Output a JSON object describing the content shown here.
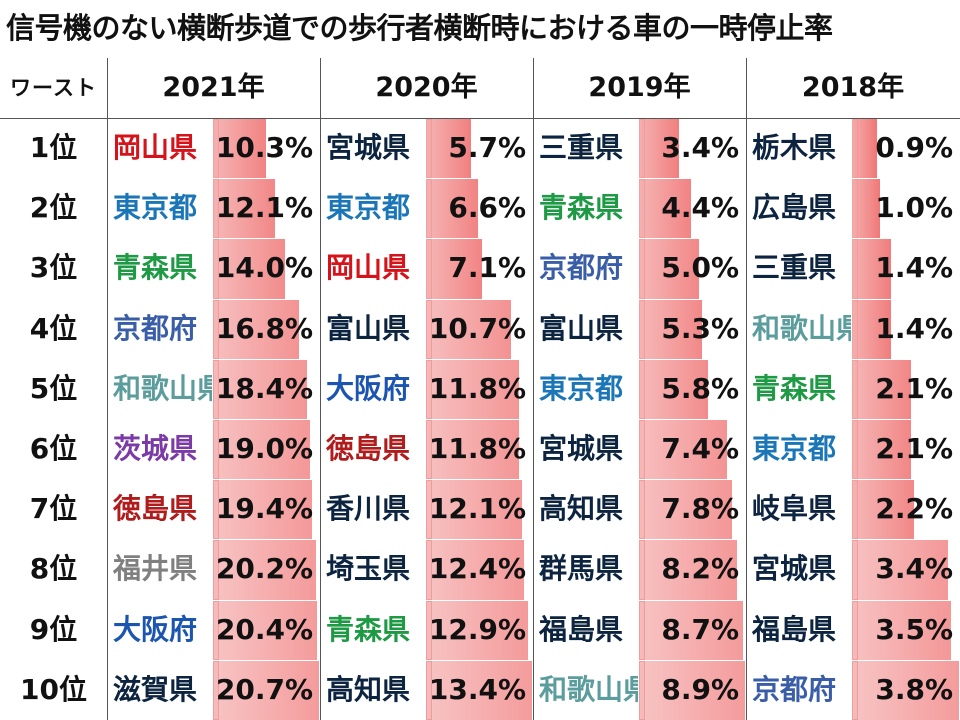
{
  "title": "信号機のない横断歩道での歩行者横断時における車の一時停止率",
  "header": {
    "worst_label": "ワースト",
    "years": [
      "2021年",
      "2020年",
      "2019年",
      "2018年"
    ]
  },
  "colors": {
    "okayama": "#d4141a",
    "tokyo": "#1b76b8",
    "aomori": "#1e9a45",
    "kyoto": "#3a5da8",
    "wakayama": "#5b9c9c",
    "ibaraki": "#7b3aa5",
    "tokushima": "#b01c1c",
    "fukui": "#808080",
    "osaka": "#1b55b0",
    "default": "#0d2440",
    "bar": "#ef6b6b"
  },
  "ranks": [
    "1位",
    "2位",
    "3位",
    "4位",
    "5位",
    "6位",
    "7位",
    "8位",
    "9位",
    "10位"
  ],
  "columns": [
    {
      "year": "2021年",
      "rows": [
        {
          "pref": "岡山県",
          "value": "10.3%",
          "rate": 10.3,
          "color": "okayama"
        },
        {
          "pref": "東京都",
          "value": "12.1%",
          "rate": 12.1,
          "color": "tokyo"
        },
        {
          "pref": "青森県",
          "value": "14.0%",
          "rate": 14.0,
          "color": "aomori"
        },
        {
          "pref": "京都府",
          "value": "16.8%",
          "rate": 16.8,
          "color": "kyoto"
        },
        {
          "pref": "和歌山県",
          "value": "18.4%",
          "rate": 18.4,
          "color": "wakayama"
        },
        {
          "pref": "茨城県",
          "value": "19.0%",
          "rate": 19.0,
          "color": "ibaraki"
        },
        {
          "pref": "徳島県",
          "value": "19.4%",
          "rate": 19.4,
          "color": "tokushima"
        },
        {
          "pref": "福井県",
          "value": "20.2%",
          "rate": 20.2,
          "color": "fukui"
        },
        {
          "pref": "大阪府",
          "value": "20.4%",
          "rate": 20.4,
          "color": "osaka"
        },
        {
          "pref": "滋賀県",
          "value": "20.7%",
          "rate": 20.7,
          "color": "default"
        }
      ]
    },
    {
      "year": "2020年",
      "rows": [
        {
          "pref": "宮城県",
          "value": "5.7%",
          "rate": 5.7,
          "color": "default"
        },
        {
          "pref": "東京都",
          "value": "6.6%",
          "rate": 6.6,
          "color": "tokyo"
        },
        {
          "pref": "岡山県",
          "value": "7.1%",
          "rate": 7.1,
          "color": "okayama"
        },
        {
          "pref": "富山県",
          "value": "10.7%",
          "rate": 10.7,
          "color": "default"
        },
        {
          "pref": "大阪府",
          "value": "11.8%",
          "rate": 11.8,
          "color": "osaka"
        },
        {
          "pref": "徳島県",
          "value": "11.8%",
          "rate": 11.8,
          "color": "tokushima"
        },
        {
          "pref": "香川県",
          "value": "12.1%",
          "rate": 12.1,
          "color": "default"
        },
        {
          "pref": "埼玉県",
          "value": "12.4%",
          "rate": 12.4,
          "color": "default"
        },
        {
          "pref": "青森県",
          "value": "12.9%",
          "rate": 12.9,
          "color": "aomori"
        },
        {
          "pref": "高知県",
          "value": "13.4%",
          "rate": 13.4,
          "color": "default"
        }
      ]
    },
    {
      "year": "2019年",
      "rows": [
        {
          "pref": "三重県",
          "value": "3.4%",
          "rate": 3.4,
          "color": "default"
        },
        {
          "pref": "青森県",
          "value": "4.4%",
          "rate": 4.4,
          "color": "aomori"
        },
        {
          "pref": "京都府",
          "value": "5.0%",
          "rate": 5.0,
          "color": "kyoto"
        },
        {
          "pref": "富山県",
          "value": "5.3%",
          "rate": 5.3,
          "color": "default"
        },
        {
          "pref": "東京都",
          "value": "5.8%",
          "rate": 5.8,
          "color": "tokyo"
        },
        {
          "pref": "宮城県",
          "value": "7.4%",
          "rate": 7.4,
          "color": "default"
        },
        {
          "pref": "高知県",
          "value": "7.8%",
          "rate": 7.8,
          "color": "default"
        },
        {
          "pref": "群馬県",
          "value": "8.2%",
          "rate": 8.2,
          "color": "default"
        },
        {
          "pref": "福島県",
          "value": "8.7%",
          "rate": 8.7,
          "color": "default"
        },
        {
          "pref": "和歌山県",
          "value": "8.9%",
          "rate": 8.9,
          "color": "wakayama"
        }
      ]
    },
    {
      "year": "2018年",
      "rows": [
        {
          "pref": "栃木県",
          "value": "0.9%",
          "rate": 0.9,
          "color": "default"
        },
        {
          "pref": "広島県",
          "value": "1.0%",
          "rate": 1.0,
          "color": "default"
        },
        {
          "pref": "三重県",
          "value": "1.4%",
          "rate": 1.4,
          "color": "default"
        },
        {
          "pref": "和歌山県",
          "value": "1.4%",
          "rate": 1.4,
          "color": "wakayama"
        },
        {
          "pref": "青森県",
          "value": "2.1%",
          "rate": 2.1,
          "color": "aomori"
        },
        {
          "pref": "東京都",
          "value": "2.1%",
          "rate": 2.1,
          "color": "tokyo"
        },
        {
          "pref": "岐阜県",
          "value": "2.2%",
          "rate": 2.2,
          "color": "default"
        },
        {
          "pref": "宮城県",
          "value": "3.4%",
          "rate": 3.4,
          "color": "default"
        },
        {
          "pref": "福島県",
          "value": "3.5%",
          "rate": 3.5,
          "color": "default"
        },
        {
          "pref": "京都府",
          "value": "3.8%",
          "rate": 3.8,
          "color": "kyoto"
        }
      ]
    }
  ]
}
